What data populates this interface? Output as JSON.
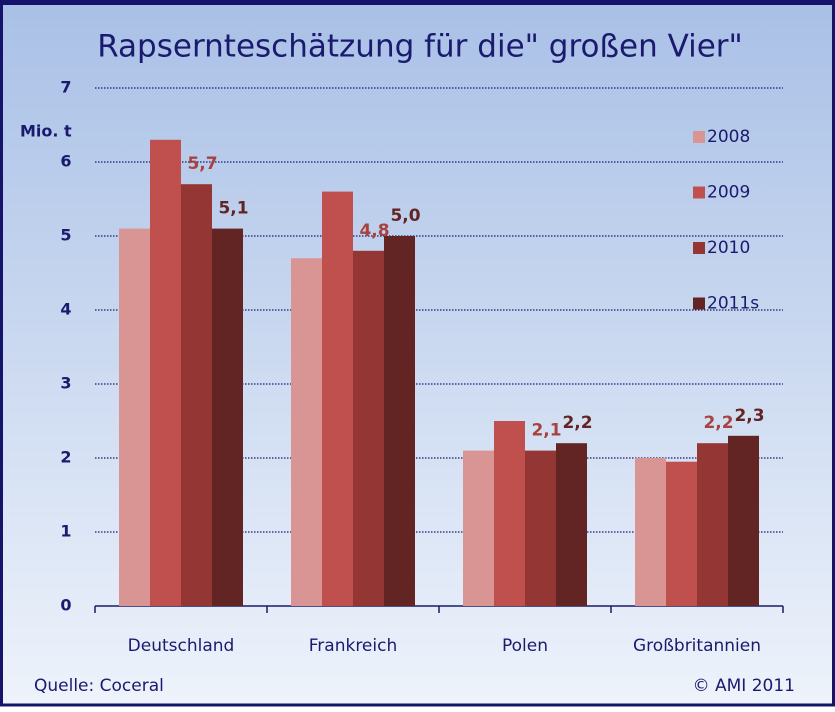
{
  "chart_data": {
    "type": "bar",
    "title": "Rapsernteschätzung für die\" großen Vier\"",
    "y_label": "Mio. t",
    "source": "Quelle: Coceral",
    "copyright": "© AMI 2011",
    "categories": [
      "Deutschland",
      "Frankreich",
      "Polen",
      "Großbritannien"
    ],
    "series": [
      {
        "name": "2008",
        "color": "#d99593",
        "values": [
          5.1,
          4.7,
          2.1,
          2.0
        ]
      },
      {
        "name": "2009",
        "color": "#c0504d",
        "values": [
          6.3,
          5.6,
          2.5,
          1.95
        ]
      },
      {
        "name": "2010",
        "color": "#943634",
        "values": [
          5.7,
          4.8,
          2.1,
          2.2
        ],
        "value_labels": [
          "5,7",
          "4,8",
          "2,1",
          "2,2"
        ],
        "label_color": "#a8423f"
      },
      {
        "name": "2011s",
        "color": "#632523",
        "values": [
          5.1,
          5.0,
          2.2,
          2.3
        ],
        "value_labels": [
          "5,1",
          "5,0",
          "2,2",
          "2,3"
        ],
        "label_color": "#632523"
      }
    ],
    "ylim": [
      0,
      7
    ],
    "yticks": [
      0,
      1,
      2,
      3,
      4,
      5,
      6,
      7
    ],
    "grid": true,
    "legend": "right"
  }
}
